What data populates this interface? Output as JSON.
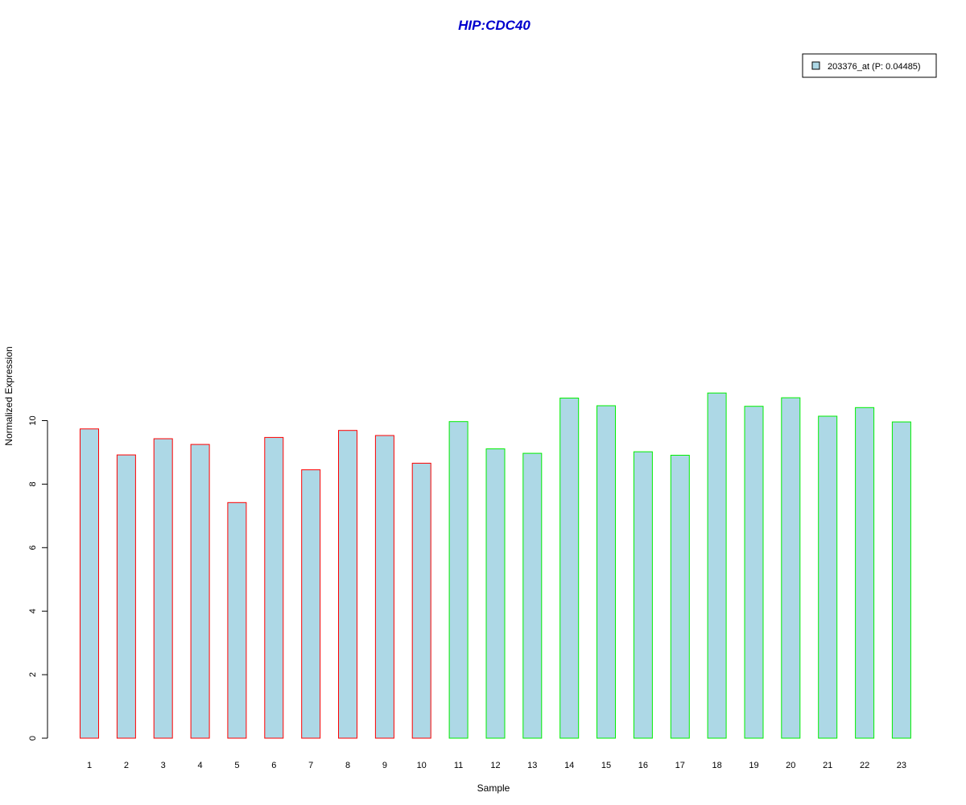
{
  "chart_data": {
    "type": "bar",
    "title": "HIP:CDC40",
    "xlabel": "Sample",
    "ylabel": "Normalized Expression",
    "categories": [
      "1",
      "2",
      "3",
      "4",
      "5",
      "6",
      "7",
      "8",
      "9",
      "10",
      "11",
      "12",
      "13",
      "14",
      "15",
      "16",
      "17",
      "18",
      "19",
      "20",
      "21",
      "22",
      "23"
    ],
    "series": [
      {
        "name": "203376_at (P: 0.04485)",
        "values": [
          9.74,
          8.92,
          9.43,
          9.25,
          7.42,
          9.47,
          8.45,
          9.69,
          9.53,
          8.66,
          9.97,
          9.11,
          8.97,
          10.71,
          10.47,
          9.02,
          8.91,
          10.87,
          10.45,
          10.72,
          10.14,
          10.41,
          9.96
        ]
      }
    ],
    "groups": [
      {
        "samples": [
          "1",
          "2",
          "3",
          "4",
          "5",
          "6",
          "7",
          "8",
          "9",
          "10"
        ],
        "border_color": "#ff0000"
      },
      {
        "samples": [
          "11",
          "12",
          "13",
          "14",
          "15",
          "16",
          "17",
          "18",
          "19",
          "20",
          "21",
          "22",
          "23"
        ],
        "border_color": "#00ee00"
      }
    ],
    "yticks": [
      0,
      2,
      4,
      6,
      8,
      10
    ],
    "ylim": [
      0,
      11.2
    ],
    "grid": false,
    "legend_position": "top-right",
    "colors": {
      "bar_fill": "#add8e6",
      "title": "#0000cd",
      "group1_border": "#ff0000",
      "group2_border": "#00ee00"
    }
  }
}
